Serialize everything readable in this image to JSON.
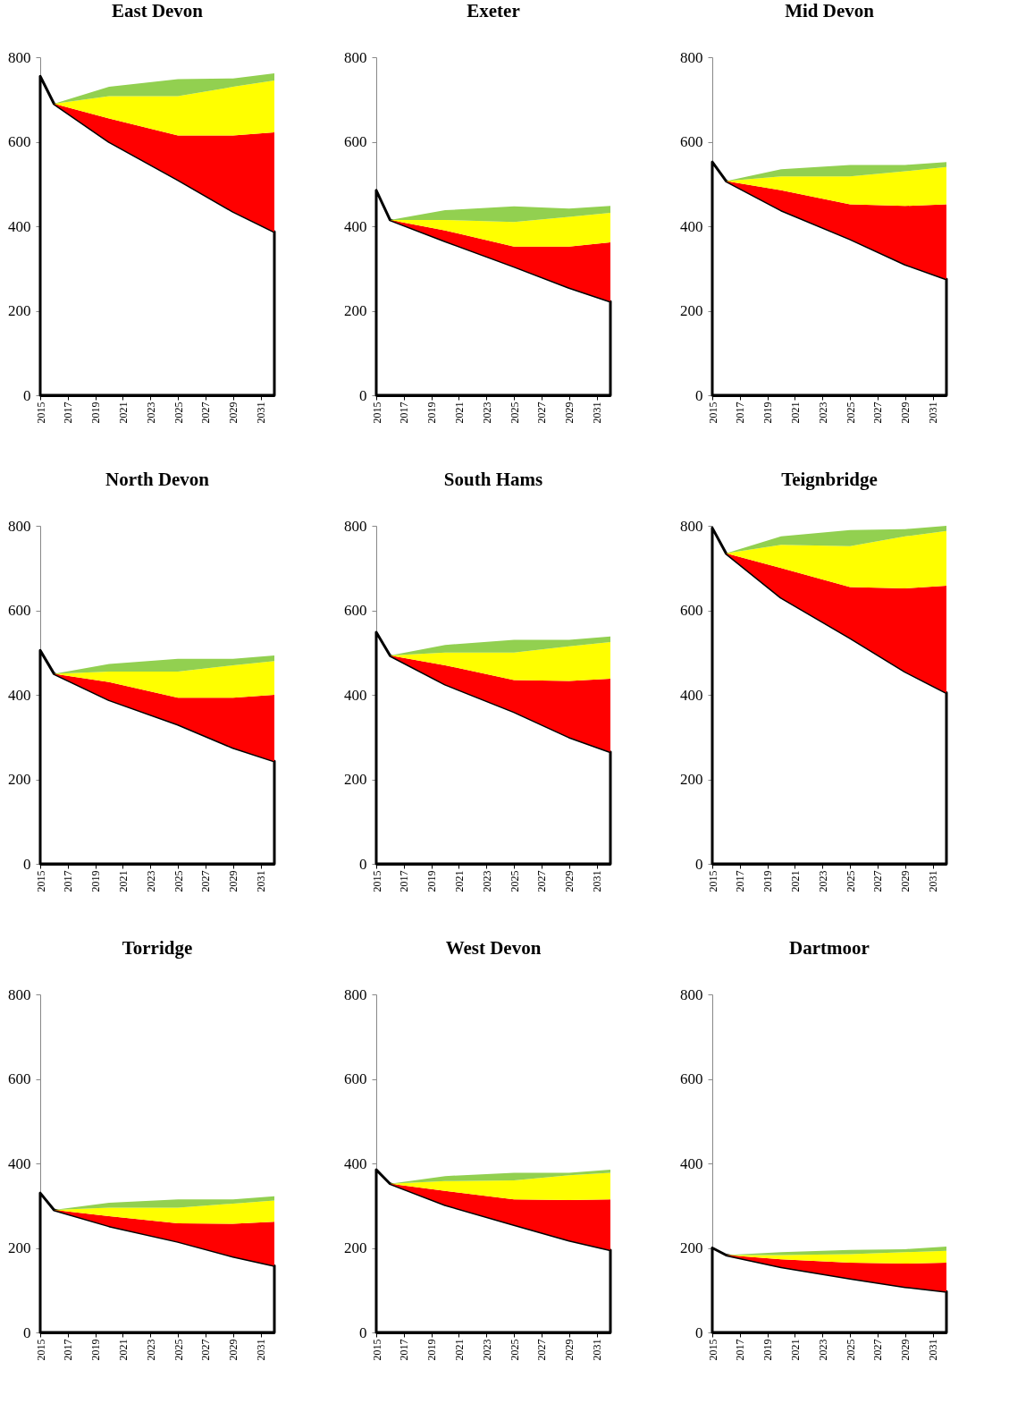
{
  "chart_data": [
    {
      "type": "area",
      "title": "East Devon",
      "stacked": true,
      "x": [
        2015,
        2016,
        2020,
        2025,
        2029,
        2032
      ],
      "xlim": [
        2015,
        2032
      ],
      "xticks": [
        2015,
        2017,
        2019,
        2021,
        2023,
        2025,
        2027,
        2029,
        2031
      ],
      "ylim": [
        0,
        800
      ],
      "yticks": [
        0,
        200,
        400,
        600,
        800
      ],
      "series": [
        {
          "color": "#ffffff",
          "values": [
            755,
            690,
            600,
            510,
            435,
            387
          ]
        },
        {
          "color": "#ff0000",
          "values": [
            null,
            0,
            55,
            105,
            180,
            235
          ]
        },
        {
          "color": "#ffff00",
          "values": [
            null,
            0,
            53,
            93,
            115,
            123
          ]
        },
        {
          "color": "#92d050",
          "values": [
            null,
            0,
            22,
            40,
            20,
            17
          ]
        }
      ]
    },
    {
      "type": "area",
      "title": "Exeter",
      "stacked": true,
      "x": [
        2015,
        2016,
        2020,
        2025,
        2029,
        2032
      ],
      "xlim": [
        2015,
        2032
      ],
      "xticks": [
        2015,
        2017,
        2019,
        2021,
        2023,
        2025,
        2027,
        2029,
        2031
      ],
      "ylim": [
        0,
        800
      ],
      "yticks": [
        0,
        200,
        400,
        600,
        800
      ],
      "series": [
        {
          "color": "#ffffff",
          "values": [
            485,
            415,
            365,
            305,
            255,
            222
          ]
        },
        {
          "color": "#ff0000",
          "values": [
            null,
            0,
            25,
            47,
            97,
            140
          ]
        },
        {
          "color": "#ffff00",
          "values": [
            null,
            0,
            25,
            58,
            70,
            70
          ]
        },
        {
          "color": "#92d050",
          "values": [
            null,
            0,
            23,
            37,
            20,
            16
          ]
        }
      ]
    },
    {
      "type": "area",
      "title": "Mid Devon",
      "stacked": true,
      "x": [
        2015,
        2016,
        2020,
        2025,
        2029,
        2032
      ],
      "xlim": [
        2015,
        2032
      ],
      "xticks": [
        2015,
        2017,
        2019,
        2021,
        2023,
        2025,
        2027,
        2029,
        2031
      ],
      "ylim": [
        0,
        800
      ],
      "yticks": [
        0,
        200,
        400,
        600,
        800
      ],
      "series": [
        {
          "color": "#ffffff",
          "values": [
            552,
            507,
            438,
            370,
            310,
            275
          ]
        },
        {
          "color": "#ff0000",
          "values": [
            null,
            0,
            47,
            82,
            138,
            177
          ]
        },
        {
          "color": "#ffff00",
          "values": [
            null,
            0,
            33,
            66,
            82,
            88
          ]
        },
        {
          "color": "#92d050",
          "values": [
            null,
            0,
            17,
            27,
            15,
            12
          ]
        }
      ]
    },
    {
      "type": "area",
      "title": "North Devon",
      "stacked": true,
      "x": [
        2015,
        2016,
        2020,
        2025,
        2029,
        2032
      ],
      "xlim": [
        2015,
        2032
      ],
      "xticks": [
        2015,
        2017,
        2019,
        2021,
        2023,
        2025,
        2027,
        2029,
        2031
      ],
      "ylim": [
        0,
        800
      ],
      "yticks": [
        0,
        200,
        400,
        600,
        800
      ],
      "series": [
        {
          "color": "#ffffff",
          "values": [
            505,
            450,
            388,
            330,
            275,
            243
          ]
        },
        {
          "color": "#ff0000",
          "values": [
            null,
            0,
            42,
            63,
            118,
            157
          ]
        },
        {
          "color": "#ffff00",
          "values": [
            null,
            0,
            25,
            62,
            77,
            80
          ]
        },
        {
          "color": "#92d050",
          "values": [
            null,
            0,
            18,
            30,
            15,
            13
          ]
        }
      ]
    },
    {
      "type": "area",
      "title": "South Hams",
      "stacked": true,
      "x": [
        2015,
        2016,
        2020,
        2025,
        2029,
        2032
      ],
      "xlim": [
        2015,
        2032
      ],
      "xticks": [
        2015,
        2017,
        2019,
        2021,
        2023,
        2025,
        2027,
        2029,
        2031
      ],
      "ylim": [
        0,
        800
      ],
      "yticks": [
        0,
        200,
        400,
        600,
        800
      ],
      "series": [
        {
          "color": "#ffffff",
          "values": [
            548,
            493,
            425,
            360,
            300,
            265
          ]
        },
        {
          "color": "#ff0000",
          "values": [
            null,
            0,
            45,
            75,
            133,
            173
          ]
        },
        {
          "color": "#ffff00",
          "values": [
            null,
            0,
            30,
            65,
            82,
            87
          ]
        },
        {
          "color": "#92d050",
          "values": [
            null,
            0,
            18,
            30,
            15,
            13
          ]
        }
      ]
    },
    {
      "type": "area",
      "title": "Teignbridge",
      "stacked": true,
      "x": [
        2015,
        2016,
        2020,
        2025,
        2029,
        2032
      ],
      "xlim": [
        2015,
        2032
      ],
      "xticks": [
        2015,
        2017,
        2019,
        2021,
        2023,
        2025,
        2027,
        2029,
        2031
      ],
      "ylim": [
        0,
        800
      ],
      "yticks": [
        0,
        200,
        400,
        600,
        800
      ],
      "series": [
        {
          "color": "#ffffff",
          "values": [
            795,
            735,
            630,
            535,
            455,
            405
          ]
        },
        {
          "color": "#ff0000",
          "values": [
            null,
            0,
            70,
            120,
            197,
            253
          ]
        },
        {
          "color": "#ffff00",
          "values": [
            null,
            0,
            55,
            97,
            123,
            130
          ]
        },
        {
          "color": "#92d050",
          "values": [
            null,
            0,
            20,
            38,
            17,
            12
          ]
        }
      ]
    },
    {
      "type": "area",
      "title": "Torridge",
      "stacked": true,
      "x": [
        2015,
        2016,
        2020,
        2025,
        2029,
        2032
      ],
      "xlim": [
        2015,
        2032
      ],
      "xticks": [
        2015,
        2017,
        2019,
        2021,
        2023,
        2025,
        2027,
        2029,
        2031
      ],
      "ylim": [
        0,
        800
      ],
      "yticks": [
        0,
        200,
        400,
        600,
        800
      ],
      "series": [
        {
          "color": "#ffffff",
          "values": [
            330,
            290,
            252,
            215,
            180,
            158
          ]
        },
        {
          "color": "#ff0000",
          "values": [
            null,
            0,
            23,
            43,
            77,
            104
          ]
        },
        {
          "color": "#ffff00",
          "values": [
            null,
            0,
            20,
            37,
            48,
            50
          ]
        },
        {
          "color": "#92d050",
          "values": [
            null,
            0,
            12,
            20,
            10,
            10
          ]
        }
      ]
    },
    {
      "type": "area",
      "title": "West Devon",
      "stacked": true,
      "x": [
        2015,
        2016,
        2020,
        2025,
        2029,
        2032
      ],
      "xlim": [
        2015,
        2032
      ],
      "xticks": [
        2015,
        2017,
        2019,
        2021,
        2023,
        2025,
        2027,
        2029,
        2031
      ],
      "ylim": [
        0,
        800
      ],
      "yticks": [
        0,
        200,
        400,
        600,
        800
      ],
      "series": [
        {
          "color": "#ffffff",
          "values": [
            385,
            352,
            302,
            255,
            218,
            195
          ]
        },
        {
          "color": "#ff0000",
          "values": [
            null,
            0,
            33,
            60,
            95,
            120
          ]
        },
        {
          "color": "#ffff00",
          "values": [
            null,
            0,
            23,
            45,
            59,
            63
          ]
        },
        {
          "color": "#92d050",
          "values": [
            null,
            0,
            12,
            18,
            6,
            7
          ]
        }
      ]
    },
    {
      "type": "area",
      "title": "Dartmoor",
      "stacked": true,
      "x": [
        2015,
        2016,
        2020,
        2025,
        2029,
        2032
      ],
      "xlim": [
        2015,
        2032
      ],
      "xticks": [
        2015,
        2017,
        2019,
        2021,
        2023,
        2025,
        2027,
        2029,
        2031
      ],
      "ylim": [
        0,
        800
      ],
      "yticks": [
        0,
        200,
        400,
        600,
        800
      ],
      "series": [
        {
          "color": "#ffffff",
          "values": [
            200,
            183,
            155,
            128,
            108,
            97
          ]
        },
        {
          "color": "#ff0000",
          "values": [
            null,
            0,
            18,
            37,
            55,
            68
          ]
        },
        {
          "color": "#ffff00",
          "values": [
            null,
            0,
            10,
            20,
            27,
            28
          ]
        },
        {
          "color": "#92d050",
          "values": [
            null,
            0,
            7,
            10,
            7,
            10
          ]
        }
      ]
    }
  ]
}
